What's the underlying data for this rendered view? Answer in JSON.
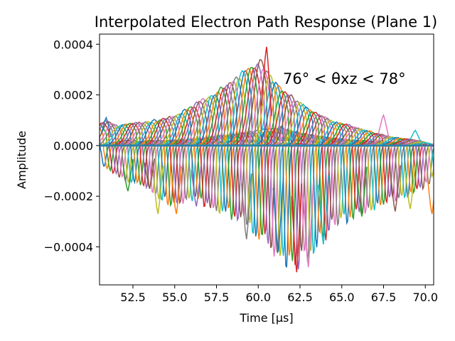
{
  "chart_data": {
    "type": "line",
    "title": "Interpolated Electron Path Response (Plane 1)",
    "xlabel": "Time [μs]",
    "ylabel": "Amplitude",
    "annotation": "76° < θxz < 78°",
    "xlim": [
      50.5,
      70.5
    ],
    "ylim": [
      -0.00055,
      0.00044
    ],
    "xticks": [
      52.5,
      55.0,
      57.5,
      60.0,
      62.5,
      65.0,
      67.5,
      70.0
    ],
    "xtick_labels": [
      "52.5",
      "55.0",
      "57.5",
      "60.0",
      "62.5",
      "65.0",
      "67.5",
      "70.0"
    ],
    "yticks": [
      -0.0004,
      -0.0002,
      0.0,
      0.0002,
      0.0004
    ],
    "ytick_labels": [
      "−0.0004",
      "−0.0002",
      "0.0000",
      "0.0002",
      "0.0004"
    ],
    "grid": false,
    "legend": "none",
    "colors": [
      "#1f77b4",
      "#ff7f0e",
      "#2ca02c",
      "#d62728",
      "#9467bd",
      "#8c564b",
      "#e377c2",
      "#7f7f7f",
      "#bcbd22",
      "#17becf"
    ],
    "series_count": 110,
    "envelope_x": [
      50.5,
      51.3,
      52.0,
      53.0,
      54.0,
      55.0,
      56.0,
      57.0,
      58.0,
      59.0,
      59.8,
      60.2,
      60.6,
      61.0,
      61.6,
      62.2,
      62.8,
      63.5,
      64.2,
      65.0,
      66.0,
      67.0,
      68.0,
      69.0,
      70.0,
      70.5
    ],
    "envelope_upper": [
      6e-05,
      0.0001,
      8e-05,
      9e-05,
      0.0001,
      0.00011,
      0.00014,
      0.00018,
      0.00022,
      0.00027,
      0.00031,
      0.00033,
      0.00035,
      0.00029,
      0.00025,
      0.00021,
      0.00018,
      0.00015,
      0.00012,
      0.0001,
      8e-05,
      6e-05,
      4e-05,
      3e-05,
      2e-05,
      1e-05
    ],
    "envelope_lower": [
      -8e-05,
      -0.00012,
      -0.00016,
      -0.00017,
      -0.00022,
      -0.00026,
      -0.00023,
      -0.00026,
      -0.00029,
      -0.00033,
      -0.00038,
      -0.00041,
      -0.00045,
      -0.00049,
      -0.00051,
      -0.0005,
      -0.00046,
      -0.00041,
      -0.00034,
      -0.00032,
      -0.00028,
      -0.00025,
      -0.00023,
      -0.0002,
      -0.00016,
      -0.00012
    ],
    "spikes": [
      {
        "x": 50.9,
        "y": 0.00011
      },
      {
        "x": 60.5,
        "y": 0.00039
      },
      {
        "x": 67.5,
        "y": 0.00012
      },
      {
        "x": 69.4,
        "y": 6e-05
      },
      {
        "x": 52.2,
        "y": -0.00018
      },
      {
        "x": 53.5,
        "y": -0.00017
      },
      {
        "x": 54.0,
        "y": -0.00027
      },
      {
        "x": 55.1,
        "y": -0.00027
      },
      {
        "x": 56.3,
        "y": -0.00024
      },
      {
        "x": 59.3,
        "y": -0.00037
      },
      {
        "x": 61.2,
        "y": -0.00042
      },
      {
        "x": 62.3,
        "y": -0.0005
      },
      {
        "x": 63.0,
        "y": -0.00048
      },
      {
        "x": 63.9,
        "y": -0.00039
      },
      {
        "x": 66.2,
        "y": -0.00028
      },
      {
        "x": 68.2,
        "y": -0.00026
      },
      {
        "x": 69.1,
        "y": -0.00025
      },
      {
        "x": 70.4,
        "y": -0.00027
      }
    ]
  }
}
